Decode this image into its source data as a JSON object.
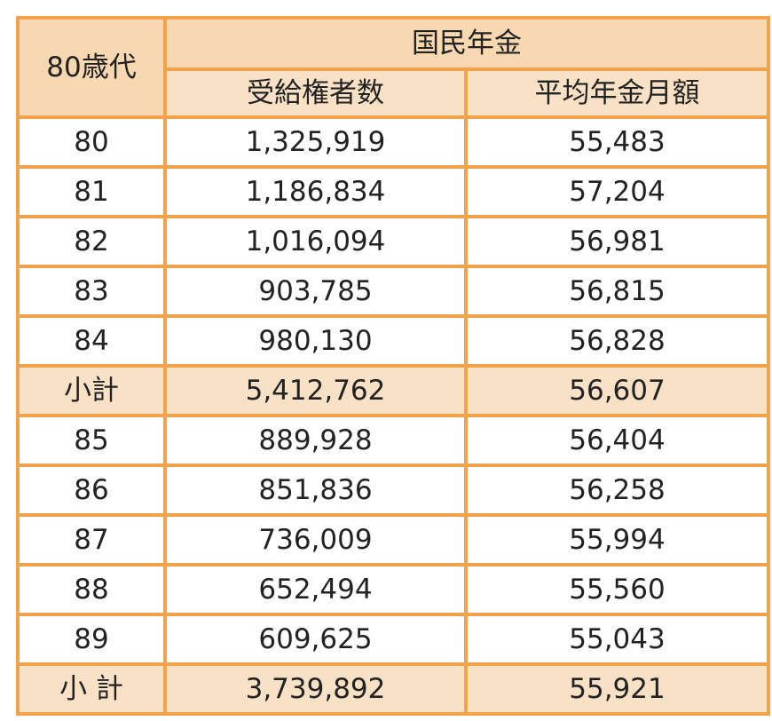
{
  "table": {
    "corner_label": "80歳代",
    "group_header": "国民年金",
    "col_headers": [
      "受給権者数",
      "平均年金月額"
    ],
    "rows": [
      {
        "age": "80",
        "recipients": "1,325,919",
        "avg_monthly": "55,483",
        "subtotal": false
      },
      {
        "age": "81",
        "recipients": "1,186,834",
        "avg_monthly": "57,204",
        "subtotal": false
      },
      {
        "age": "82",
        "recipients": "1,016,094",
        "avg_monthly": "56,981",
        "subtotal": false
      },
      {
        "age": "83",
        "recipients": "903,785",
        "avg_monthly": "56,815",
        "subtotal": false
      },
      {
        "age": "84",
        "recipients": "980,130",
        "avg_monthly": "56,828",
        "subtotal": false
      },
      {
        "age": "小計",
        "recipients": "5,412,762",
        "avg_monthly": "56,607",
        "subtotal": true
      },
      {
        "age": "85",
        "recipients": "889,928",
        "avg_monthly": "56,404",
        "subtotal": false
      },
      {
        "age": "86",
        "recipients": "851,836",
        "avg_monthly": "56,258",
        "subtotal": false
      },
      {
        "age": "87",
        "recipients": "736,009",
        "avg_monthly": "55,994",
        "subtotal": false
      },
      {
        "age": "88",
        "recipients": "652,494",
        "avg_monthly": "55,560",
        "subtotal": false
      },
      {
        "age": "89",
        "recipients": "609,625",
        "avg_monthly": "55,043",
        "subtotal": false
      },
      {
        "age": "小 計",
        "recipients": "3,739,892",
        "avg_monthly": "55,921",
        "subtotal": true
      }
    ]
  },
  "colors": {
    "border": "#f0a34a",
    "header_fill": "#f7d8b0",
    "subtotal_fill": "#f9e1c6"
  }
}
